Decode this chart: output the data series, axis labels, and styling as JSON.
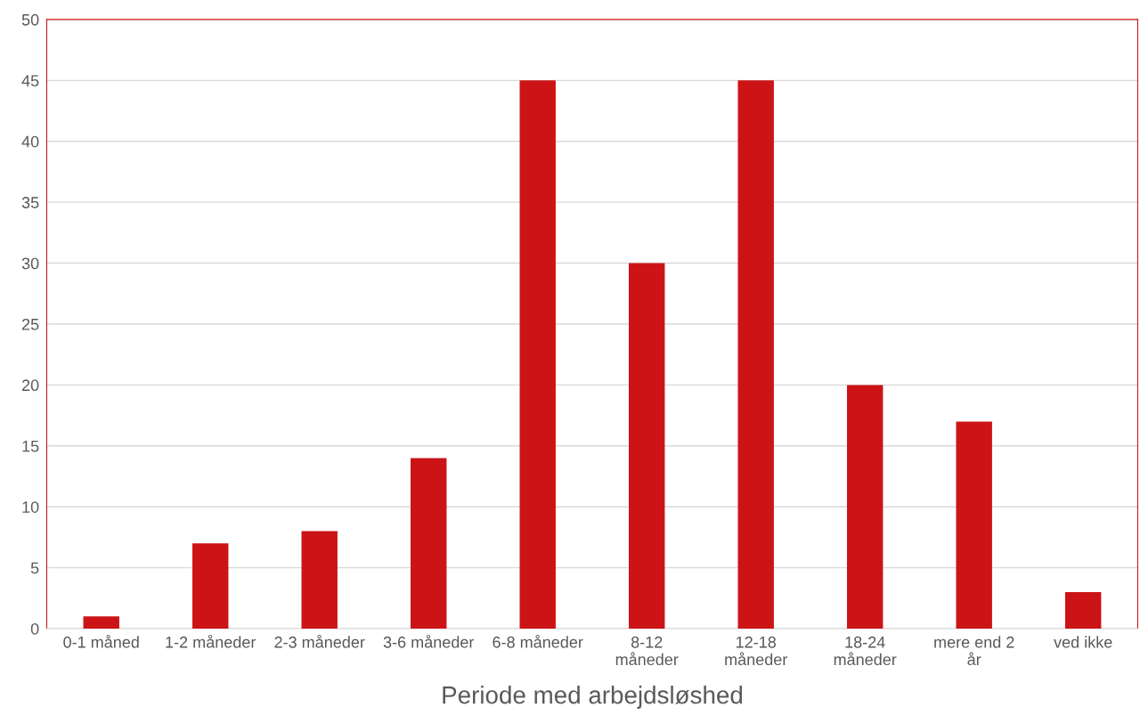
{
  "chart_data": {
    "type": "bar",
    "xlabel": "Periode med arbejdsløshed",
    "categories": [
      "0-1 måned",
      "1-2 måneder",
      "2-3 måneder",
      "3-6 måneder",
      "6-8 måneder",
      "8-12\nmåneder",
      "12-18\nmåneder",
      "18-24\nmåneder",
      "mere end 2\når",
      "ved ikke"
    ],
    "values": [
      1,
      7,
      8,
      14,
      45,
      30,
      45,
      20,
      17,
      3
    ],
    "color": "#cc1417",
    "ylim": [
      0,
      50
    ],
    "yticks": [
      0,
      5,
      10,
      15,
      20,
      25,
      30,
      35,
      40,
      45,
      50
    ],
    "grid": "y",
    "legend": false
  }
}
